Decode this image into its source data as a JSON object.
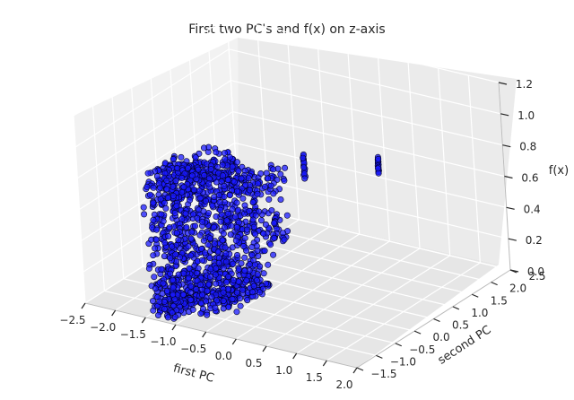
{
  "chart_data": {
    "type": "scatter",
    "title": "First two PC's and f(x) on z-axis",
    "xlabel": "first PC",
    "ylabel": "second PC",
    "zlabel": "f(x)",
    "xlim": [
      -2.5,
      2.0
    ],
    "ylim": [
      -1.5,
      2.5
    ],
    "zlim": [
      0.0,
      1.2
    ],
    "x_ticks": [
      "−2.5",
      "−2.0",
      "−1.5",
      "−1.0",
      "−0.5",
      "0.0",
      "0.5",
      "1.0",
      "1.5",
      "2.0"
    ],
    "y_ticks": [
      "−1.5",
      "−1.0",
      "−0.5",
      "0.0",
      "0.5",
      "1.0",
      "1.5",
      "2.0",
      "2.5"
    ],
    "z_ticks": [
      "0.0",
      "0.2",
      "0.4",
      "0.6",
      "0.8",
      "1.0",
      "1.2"
    ],
    "grid": true,
    "marker_color": "#1a1aff",
    "marker_edge_color": "#000022",
    "pane_color": "#f0f0f0",
    "grid_color": "#ffffff",
    "clusters": [
      {
        "x": [
          -1.45,
          -1.0
        ],
        "y": [
          -1.5,
          -0.6
        ],
        "z": [
          0.02,
          0.9
        ],
        "count": 520
      },
      {
        "x": [
          -1.1,
          -0.55
        ],
        "y": [
          -1.3,
          -0.3
        ],
        "z": [
          0.05,
          0.95
        ],
        "count": 380
      },
      {
        "x": [
          -0.7,
          -0.2
        ],
        "y": [
          -1.2,
          -0.4
        ],
        "z": [
          0.1,
          0.9
        ],
        "count": 260
      },
      {
        "x": [
          -0.3,
          0.1
        ],
        "y": [
          -1.0,
          -0.5
        ],
        "z": [
          0.2,
          0.9
        ],
        "count": 140
      },
      {
        "x": [
          0.05,
          0.3
        ],
        "y": [
          -0.8,
          -0.4
        ],
        "z": [
          0.5,
          0.95
        ],
        "count": 60
      }
    ],
    "columns": [
      {
        "x": 0.55,
        "y": -0.35,
        "z": [
          0.9,
          1.05
        ],
        "count": 16
      },
      {
        "x": 1.5,
        "y": 0.1,
        "z": [
          0.95,
          1.05
        ],
        "count": 14
      }
    ],
    "outliers": [
      {
        "x": -1.2,
        "y": -1.35,
        "z": 0.62
      },
      {
        "x": -1.25,
        "y": -1.3,
        "z": 0.72
      },
      {
        "x": -0.2,
        "y": -0.9,
        "z": 1.02
      },
      {
        "x": -1.05,
        "y": -1.4,
        "z": 0.48
      }
    ]
  }
}
